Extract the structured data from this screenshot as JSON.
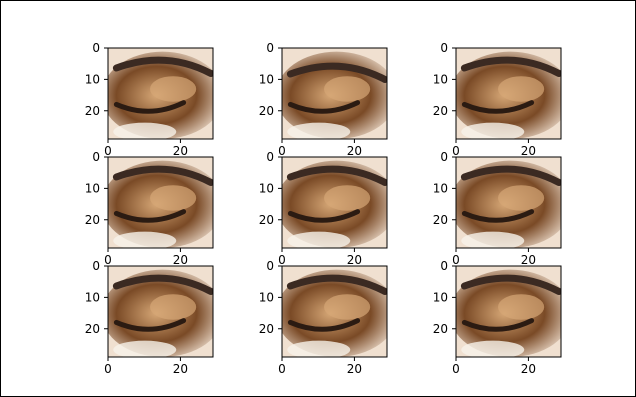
{
  "chart_data": {
    "type": "heatmap",
    "description_text": "",
    "grid": "3x3 image thumbnails",
    "shared_axes": {
      "x_ticks": [
        "0",
        "20"
      ],
      "y_ticks": [
        "0",
        "10",
        "20"
      ],
      "xlim": [
        0,
        29
      ],
      "ylim": [
        29,
        0
      ]
    },
    "panels": [
      {
        "variant": "eye-a"
      },
      {
        "variant": "eye-b"
      },
      {
        "variant": "eye-c"
      },
      {
        "variant": "eye-d"
      },
      {
        "variant": "eye-e"
      },
      {
        "variant": "eye-f"
      },
      {
        "variant": "eye-g"
      },
      {
        "variant": "eye-h"
      },
      {
        "variant": "eye-i"
      }
    ]
  },
  "colors": {
    "skin_light": "#f0e0d0",
    "skin_mid": "#d6a776",
    "shadow": "#7a4a26",
    "dark": "#2b1b12",
    "brow": "#3b2a22",
    "highlight": "#f8f2ea"
  }
}
